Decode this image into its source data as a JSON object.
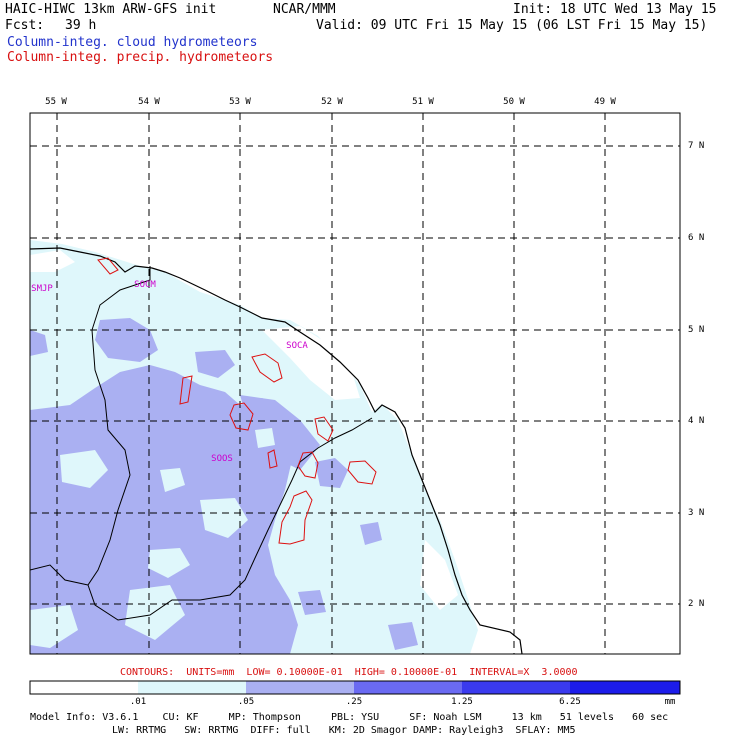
{
  "header": {
    "model_title": "HAIC-HIWC 13km ARW-GFS init",
    "org": "NCAR/MMM",
    "init": "Init: 18 UTC Wed 13 May 15",
    "fcst_label": "Fcst:",
    "fcst_value": "39 h",
    "valid": "Valid: 09 UTC Fri 15 May 15 (06 LST Fri 15 May 15)",
    "field_cloud": "Column-integ. cloud hydrometeors",
    "field_precip": "Column-integ. precip. hydrometeors"
  },
  "map": {
    "longitude_labels": [
      "55 W",
      "54 W",
      "53 W",
      "52 W",
      "51 W",
      "50 W",
      "49 W"
    ],
    "latitude_labels": [
      "7 N",
      "6 N",
      "5 N",
      "4 N",
      "3 N",
      "2 N"
    ],
    "stations": [
      "SMJP",
      "SOCM",
      "SOCA",
      "SOOS"
    ]
  },
  "contour_info": "CONTOURS:  UNITS=mm  LOW= 0.10000E-01  HIGH= 0.10000E-01  INTERVAL=X  3.0000",
  "colorbar": {
    "ticks": [
      ".01",
      ".05",
      ".25",
      "1.25",
      "6.25"
    ],
    "units": "mm",
    "colors": [
      "#ffffff",
      "#dff7fb",
      "#aab0f2",
      "#6a6af2",
      "#3a3aee",
      "#1c1cea"
    ]
  },
  "footer": {
    "line1": "Model Info: V3.6.1    CU: KF     MP: Thompson     PBL: YSU     SF: Noah LSM     13 km   51 levels   60 sec",
    "line2": "LW: RRTMG   SW: RRTMG  DIFF: full   KM: 2D Smagor DAMP: Rayleigh3  SFLAY: MM5"
  },
  "colors": {
    "coast": "#000000",
    "precip_contour": "#dd1111",
    "station": "#cc00cc",
    "cloud_light": "#dff7fb",
    "cloud_mid": "#aab0f2"
  }
}
